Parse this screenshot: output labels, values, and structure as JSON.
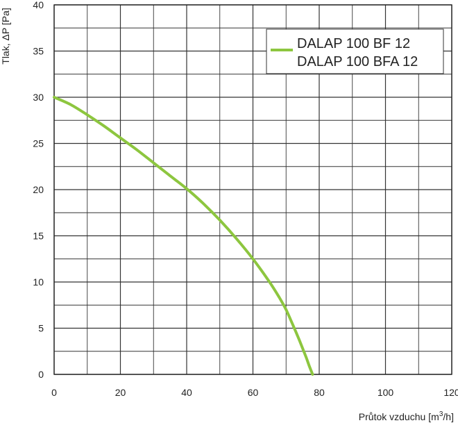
{
  "chart_data": {
    "type": "line",
    "title": "",
    "xlabel_main": "Průtok vzduchu",
    "xlabel_unit_pre": "[m",
    "xlabel_unit_sup": "3",
    "xlabel_unit_post": "/h]",
    "ylabel": "Tlak, ΔP [Pa]",
    "xlim": [
      0,
      120
    ],
    "ylim": [
      0,
      40
    ],
    "x_ticks": [
      0,
      20,
      40,
      60,
      80,
      100,
      120
    ],
    "y_ticks": [
      0,
      5,
      10,
      15,
      20,
      25,
      30,
      35,
      40
    ],
    "grid": true,
    "legend_position": "top-right",
    "legend": [
      "DALAP 100 BF 12",
      "DALAP 100 BFA 12"
    ],
    "series": [
      {
        "color": "#8dc63f",
        "x": [
          0,
          5,
          10,
          15,
          20,
          25,
          30,
          35,
          40,
          45,
          50,
          55,
          60,
          65,
          68,
          70,
          72,
          74,
          76,
          77,
          78
        ],
        "y": [
          30,
          29.2,
          28.1,
          26.9,
          25.6,
          24.3,
          22.9,
          21.5,
          20.1,
          18.5,
          16.7,
          14.7,
          12.5,
          10,
          8.3,
          7,
          5.4,
          3.7,
          1.9,
          0.9,
          0
        ]
      }
    ]
  }
}
